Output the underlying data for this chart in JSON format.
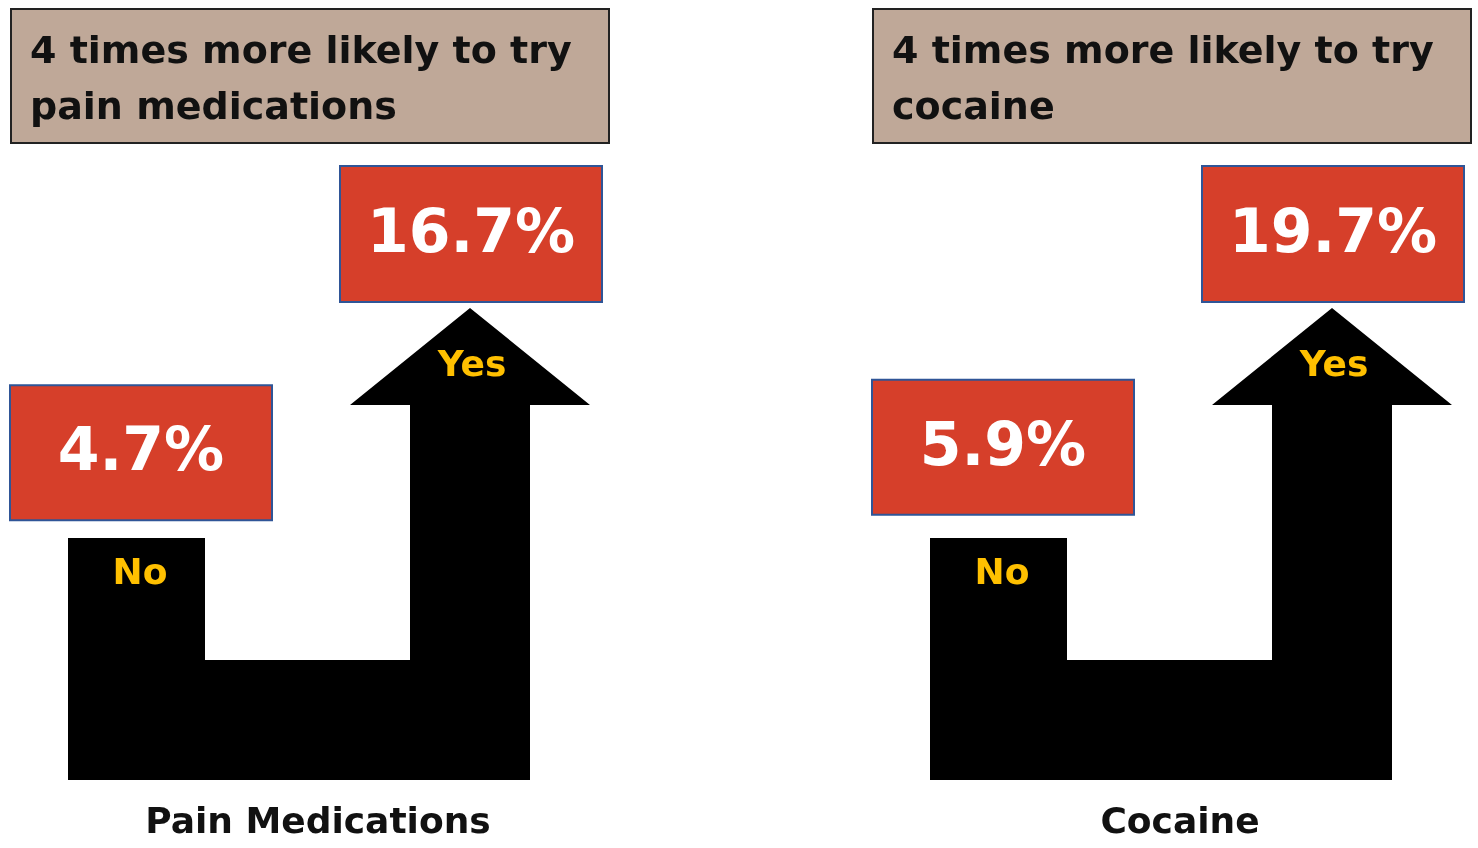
{
  "chart_data": [
    {
      "type": "other",
      "title": "4 times more likely to try pain medications",
      "xlabel": "Pain Medications",
      "categories": [
        "No",
        "Yes"
      ],
      "values": [
        4.7,
        16.7
      ],
      "value_labels": [
        "4.7%",
        "16.7%"
      ],
      "colors": [
        "#d63f2a",
        "#d63f2a"
      ]
    },
    {
      "type": "other",
      "title": "4 times more likely to try cocaine",
      "xlabel": "Cocaine",
      "categories": [
        "No",
        "Yes"
      ],
      "values": [
        5.9,
        19.7
      ],
      "value_labels": [
        "5.9%",
        "19.7%"
      ],
      "colors": [
        "#d63f2a",
        "#d63f2a"
      ]
    }
  ]
}
